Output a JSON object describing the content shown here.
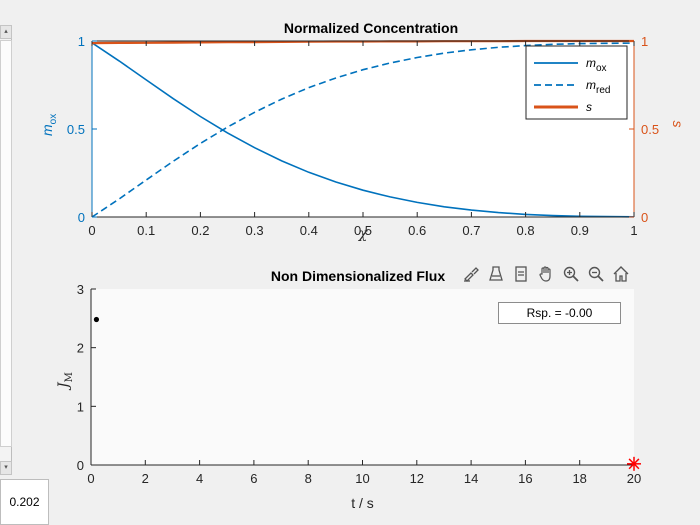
{
  "sidebar": {
    "value_readout": "0.202"
  },
  "toolbar": {
    "icons": [
      "brush-icon",
      "data-tips-icon",
      "export-icon",
      "pan-hand-icon",
      "zoom-in-icon",
      "zoom-out-icon",
      "home-icon"
    ]
  },
  "colors": {
    "blue": "#0072BD",
    "orange": "#D95319",
    "red_marker": "#FF0000",
    "axes_bg_top": "#ffffff",
    "axes_bg_bottom": "#fafafa"
  },
  "chart_data": [
    {
      "type": "line",
      "title": "Normalized Concentration",
      "xlabel": "χ",
      "ylabel_left": "m",
      "ylabel_left_sub": "ox",
      "ylabel_right": "s",
      "xlim": [
        0,
        1
      ],
      "ylim_left": [
        0,
        1
      ],
      "ylim_right": [
        0,
        1
      ],
      "xticks": [
        "0",
        "0.1",
        "0.2",
        "0.3",
        "0.4",
        "0.5",
        "0.6",
        "0.7",
        "0.8",
        "0.9",
        "1"
      ],
      "yticks_left": [
        "0",
        "0.5",
        "1"
      ],
      "yticks_right": [
        "0",
        "0.5",
        "1"
      ],
      "legend_position": "top-right",
      "x": [
        0,
        0.05,
        0.1,
        0.15,
        0.2,
        0.25,
        0.3,
        0.35,
        0.4,
        0.45,
        0.5,
        0.55,
        0.6,
        0.65,
        0.7,
        0.75,
        0.8,
        0.85,
        0.9,
        0.95,
        1.0
      ],
      "series": [
        {
          "name": "m",
          "name_sub": "ox",
          "color": "#0072BD",
          "style": "solid",
          "axis": "left",
          "values": [
            0.99,
            0.887,
            0.779,
            0.672,
            0.571,
            0.478,
            0.394,
            0.319,
            0.254,
            0.199,
            0.152,
            0.114,
            0.083,
            0.058,
            0.039,
            0.025,
            0.015,
            0.008,
            0.004,
            0.002,
            0.001
          ]
        },
        {
          "name": "m",
          "name_sub": "red",
          "color": "#0072BD",
          "style": "dashed",
          "axis": "left",
          "values": [
            0.0,
            0.102,
            0.21,
            0.317,
            0.418,
            0.511,
            0.595,
            0.67,
            0.735,
            0.79,
            0.837,
            0.875,
            0.906,
            0.931,
            0.95,
            0.964,
            0.974,
            0.981,
            0.985,
            0.987,
            0.988
          ]
        },
        {
          "name": "s",
          "name_sub": "",
          "color": "#D95319",
          "style": "solid",
          "axis": "right",
          "values": [
            0.988,
            0.989,
            0.99,
            0.991,
            0.992,
            0.993,
            0.994,
            0.995,
            0.996,
            0.997,
            0.997,
            0.998,
            0.998,
            0.999,
            0.999,
            0.999,
            1.0,
            1.0,
            1.0,
            1.0,
            1.0
          ]
        }
      ]
    },
    {
      "type": "scatter",
      "title": "Non Dimensionalized Flux",
      "xlabel": "t / s",
      "ylabel": "J",
      "ylabel_sub": "M",
      "xlim": [
        0,
        20
      ],
      "ylim": [
        0,
        3
      ],
      "xticks": [
        "0",
        "2",
        "4",
        "6",
        "8",
        "10",
        "12",
        "14",
        "16",
        "18",
        "20"
      ],
      "yticks": [
        "0",
        "1",
        "2",
        "3"
      ],
      "annotation": "Rsp. = -0.00",
      "points": [
        {
          "x": 0.2,
          "y": 2.48,
          "marker": "dot",
          "color": "#000000"
        },
        {
          "x": 20,
          "y": 0.02,
          "marker": "star",
          "color": "#FF0000"
        }
      ]
    }
  ]
}
